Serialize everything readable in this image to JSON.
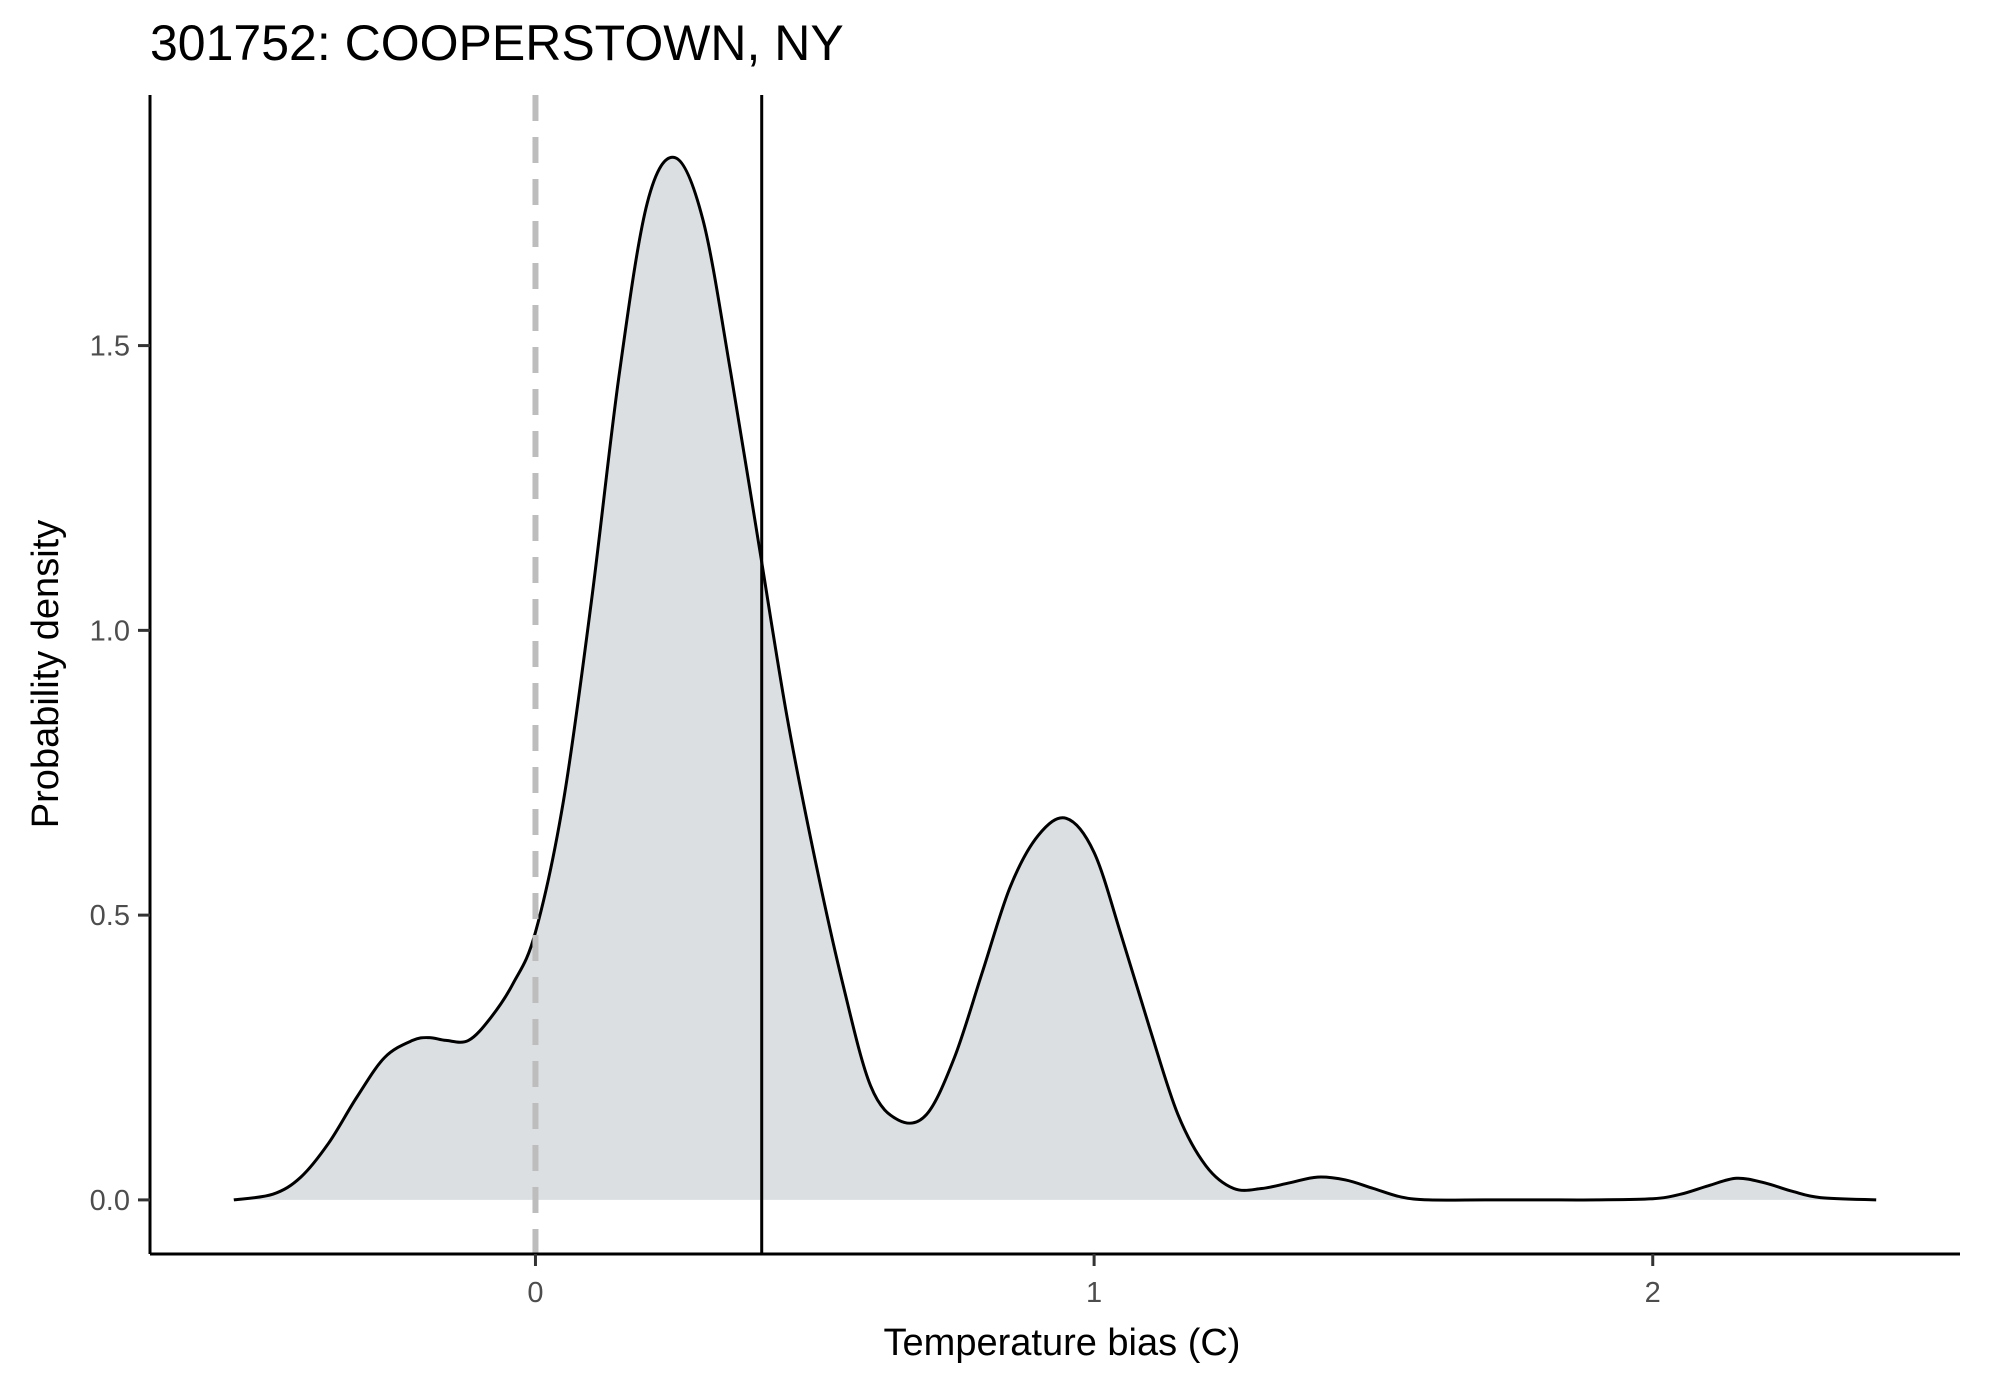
{
  "chart_data": {
    "type": "area",
    "title": "301752: COOPERSTOWN, NY",
    "xlabel": "Temperature bias (C)",
    "ylabel": "Probability density",
    "xlim": [
      -0.69,
      2.55
    ],
    "ylim": [
      -0.095,
      1.94
    ],
    "xticks": [
      0,
      1,
      2
    ],
    "xtick_labels": [
      "0",
      "1",
      "2"
    ],
    "yticks": [
      0.0,
      0.5,
      1.0,
      1.5
    ],
    "ytick_labels": [
      "0.0",
      "0.5",
      "1.0",
      "1.5"
    ],
    "grid": false,
    "colors": {
      "fill": "#dbdfe2",
      "line": "#000000",
      "zero_line": "#bdbdbd",
      "mean_line": "#000000"
    },
    "reference_lines": [
      {
        "x": 0,
        "style": "dashed",
        "color": "#bdbdbd"
      },
      {
        "x": 0.405,
        "style": "solid",
        "color": "#000000"
      }
    ],
    "series": [
      {
        "x": [
          -0.54,
          -0.47,
          -0.42,
          -0.37,
          -0.32,
          -0.27,
          -0.22,
          -0.19,
          -0.16,
          -0.12,
          -0.08,
          -0.04,
          0.0,
          0.05,
          0.1,
          0.15,
          0.2,
          0.25,
          0.3,
          0.35,
          0.4,
          0.45,
          0.5,
          0.55,
          0.6,
          0.65,
          0.7,
          0.75,
          0.8,
          0.85,
          0.9,
          0.95,
          1.0,
          1.05,
          1.1,
          1.15,
          1.2,
          1.25,
          1.3,
          1.35,
          1.4,
          1.45,
          1.5,
          1.55,
          1.6,
          1.7,
          1.8,
          1.9,
          2.0,
          2.05,
          2.1,
          2.15,
          2.2,
          2.25,
          2.3,
          2.4
        ],
        "y": [
          0.0,
          0.01,
          0.04,
          0.1,
          0.18,
          0.25,
          0.28,
          0.285,
          0.28,
          0.28,
          0.32,
          0.38,
          0.47,
          0.7,
          1.05,
          1.45,
          1.75,
          1.83,
          1.72,
          1.45,
          1.15,
          0.85,
          0.6,
          0.38,
          0.2,
          0.14,
          0.15,
          0.25,
          0.4,
          0.55,
          0.64,
          0.67,
          0.61,
          0.46,
          0.3,
          0.15,
          0.06,
          0.02,
          0.02,
          0.03,
          0.04,
          0.035,
          0.02,
          0.005,
          0.0,
          0.0,
          0.0,
          0.0,
          0.002,
          0.01,
          0.025,
          0.038,
          0.03,
          0.015,
          0.004,
          0.0
        ]
      }
    ]
  }
}
